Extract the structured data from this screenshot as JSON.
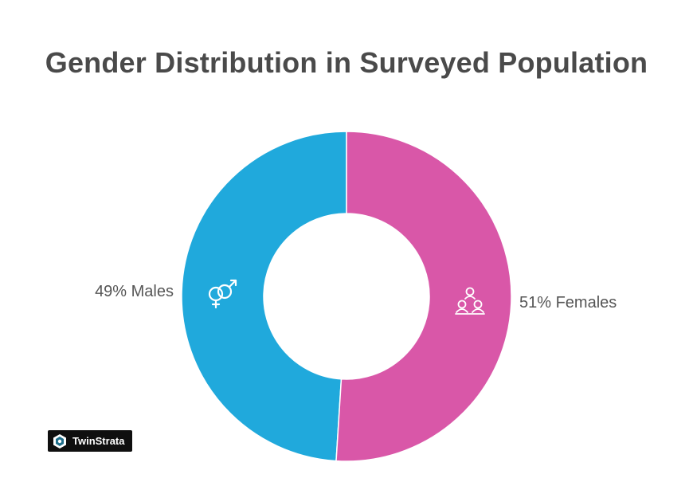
{
  "chart_data": {
    "type": "pie",
    "variant": "donut",
    "title": "Gender Distribution in Surveyed Population",
    "slices": [
      {
        "label": "Males",
        "value": 49,
        "display": "49% Males",
        "color": "#20a9dc",
        "icon": "gender-symbols-icon"
      },
      {
        "label": "Females",
        "value": 51,
        "display": "51% Females",
        "color": "#d957a8",
        "icon": "women-group-icon"
      }
    ],
    "legend": "none"
  },
  "branding": {
    "name": "TwinStrata",
    "icon": "twinstrata-logo-icon"
  }
}
